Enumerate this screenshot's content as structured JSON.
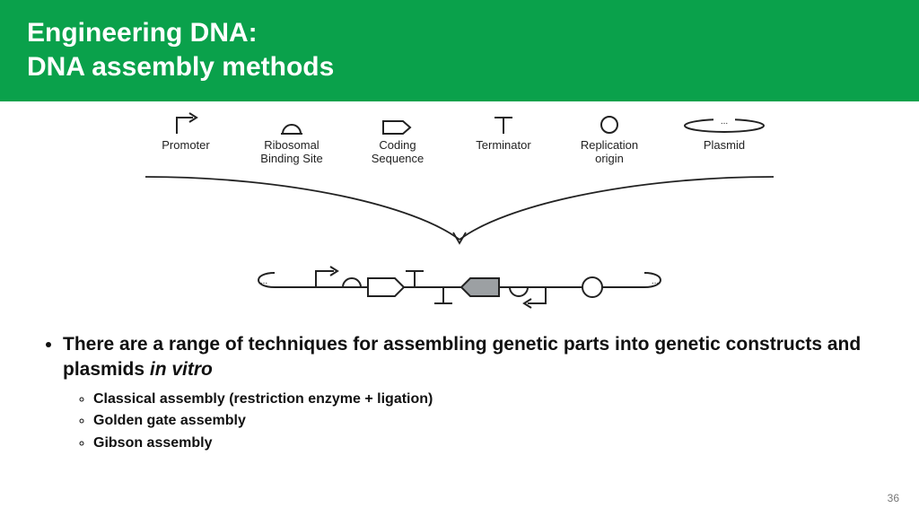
{
  "header": {
    "bg_color": "#0aa14b",
    "title_line1": "Engineering DNA:",
    "title_line2": "DNA assembly methods",
    "title_fontsize": 30,
    "title_color": "#ffffff"
  },
  "parts": {
    "stroke": "#222222",
    "stroke_width": 2,
    "label_fontsize": 13,
    "items": [
      {
        "id": "promoter",
        "label": "Promoter"
      },
      {
        "id": "rbs",
        "label": "Ribosomal\nBinding Site"
      },
      {
        "id": "cds",
        "label": "Coding\nSequence"
      },
      {
        "id": "term",
        "label": "Terminator"
      },
      {
        "id": "origin",
        "label": "Replication\norigin"
      },
      {
        "id": "plasmid",
        "label": "Plasmid"
      }
    ]
  },
  "diagram": {
    "arrow_stroke": "#222222",
    "arrow_width": 1.6,
    "construct_fill": "#9ca0a3",
    "construct_stroke": "#222222",
    "dots_text": "..."
  },
  "bullets": {
    "main_text_a": "There are a range of techniques for assembling genetic parts into genetic constructs and plasmids ",
    "main_text_b": "in vitro",
    "sub": [
      "Classical assembly (restriction enzyme + ligation)",
      "Golden gate assembly",
      "Gibson assembly"
    ],
    "main_fontsize": 21,
    "sub_fontsize": 16
  },
  "page_number": "36"
}
